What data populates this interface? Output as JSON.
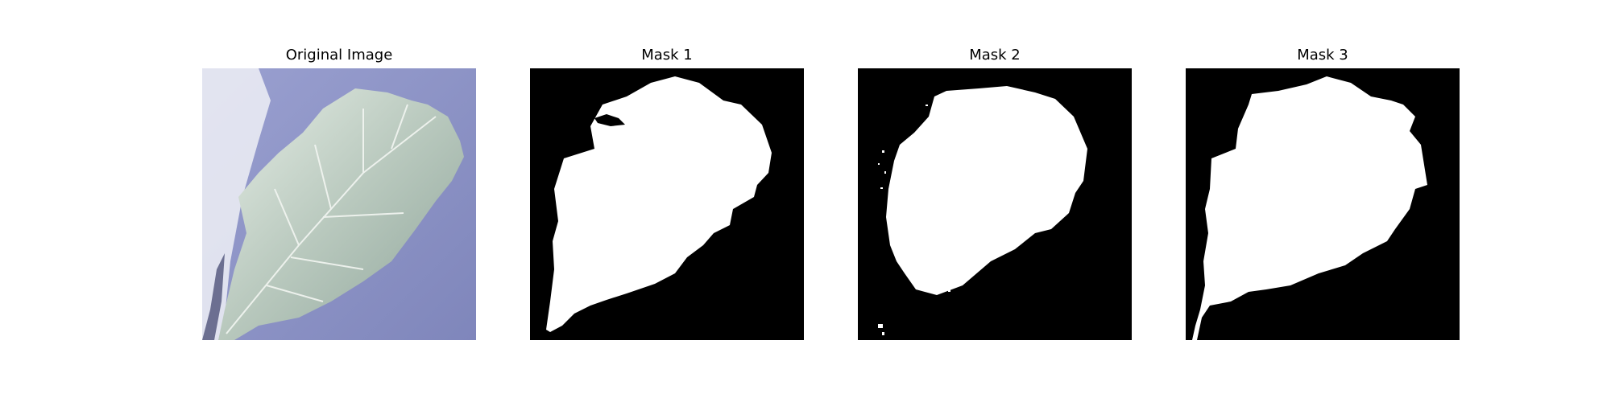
{
  "figure": {
    "panels": [
      {
        "title": "Original Image",
        "kind": "photo"
      },
      {
        "title": "Mask 1",
        "kind": "mask"
      },
      {
        "title": "Mask 2",
        "kind": "mask"
      },
      {
        "title": "Mask 3",
        "kind": "mask"
      }
    ],
    "colors": {
      "background": "#ffffff",
      "mask_background": "#000000",
      "mask_foreground": "#ffffff",
      "photo_background": "#8e93c4",
      "leaf": "#c9d6cc"
    }
  }
}
